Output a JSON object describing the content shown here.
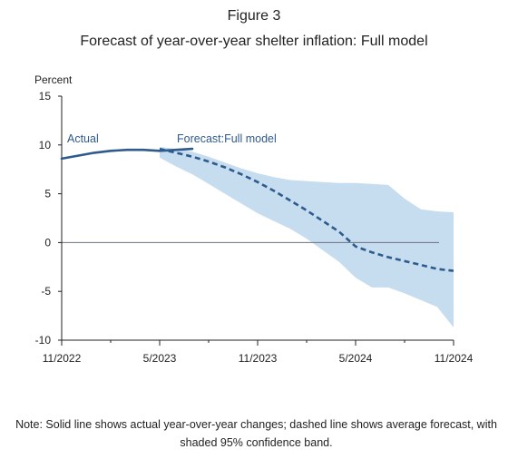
{
  "figure": {
    "label": "Figure 3",
    "title": "Forecast of year-over-year shelter inflation: Full model",
    "note": "Note: Solid line shows actual year-over-year changes; dashed line shows average forecast, with shaded 95% confidence band."
  },
  "colors": {
    "actual_line": "#2e5a8c",
    "forecast_line": "#2e5a8c",
    "band_fill": "#c6dcef",
    "zero_line": "#6b7280",
    "axis": "#222222"
  },
  "chart_data": {
    "type": "line",
    "ylabel": "Percent",
    "ylim": [
      -10,
      15
    ],
    "yticks": [
      15,
      10,
      5,
      0,
      -5,
      -10
    ],
    "xlim": [
      "2022-11",
      "2024-11"
    ],
    "xticks": [
      "11/2022",
      "5/2023",
      "11/2023",
      "5/2024",
      "11/2024"
    ],
    "x_tick_months": [
      "2022-11",
      "2023-05",
      "2023-11",
      "2024-05",
      "2024-11"
    ],
    "grid": false,
    "reference_line_y": 0,
    "series": [
      {
        "name": "Actual",
        "style": "solid",
        "points": [
          {
            "x": "2022-11",
            "y": 8.6
          },
          {
            "x": "2022-12",
            "y": 8.9
          },
          {
            "x": "2023-01",
            "y": 9.2
          },
          {
            "x": "2023-02",
            "y": 9.4
          },
          {
            "x": "2023-03",
            "y": 9.5
          },
          {
            "x": "2023-04",
            "y": 9.5
          },
          {
            "x": "2023-05",
            "y": 9.4
          },
          {
            "x": "2023-06",
            "y": 9.5
          },
          {
            "x": "2023-07",
            "y": 9.6
          }
        ]
      },
      {
        "name": "Forecast:Full model",
        "style": "dashed",
        "points": [
          {
            "x": "2023-05",
            "y": 9.6
          },
          {
            "x": "2023-06",
            "y": 9.2
          },
          {
            "x": "2023-07",
            "y": 8.8
          },
          {
            "x": "2023-08",
            "y": 8.3
          },
          {
            "x": "2023-09",
            "y": 7.7
          },
          {
            "x": "2023-10",
            "y": 7.0
          },
          {
            "x": "2023-11",
            "y": 6.2
          },
          {
            "x": "2023-12",
            "y": 5.3
          },
          {
            "x": "2024-01",
            "y": 4.3
          },
          {
            "x": "2024-02",
            "y": 3.3
          },
          {
            "x": "2024-03",
            "y": 2.2
          },
          {
            "x": "2024-04",
            "y": 1.1
          },
          {
            "x": "2024-05",
            "y": -0.4
          },
          {
            "x": "2024-06",
            "y": -1.0
          },
          {
            "x": "2024-07",
            "y": -1.5
          },
          {
            "x": "2024-08",
            "y": -1.9
          },
          {
            "x": "2024-09",
            "y": -2.3
          },
          {
            "x": "2024-10",
            "y": -2.7
          },
          {
            "x": "2024-11",
            "y": -2.9
          }
        ]
      }
    ],
    "confidence_band": {
      "level": "95%",
      "points": [
        {
          "x": "2023-05",
          "upper": 9.8,
          "lower": 8.7
        },
        {
          "x": "2023-06",
          "upper": 9.6,
          "lower": 7.8
        },
        {
          "x": "2023-07",
          "upper": 9.3,
          "lower": 7.0
        },
        {
          "x": "2023-08",
          "upper": 8.8,
          "lower": 6.0
        },
        {
          "x": "2023-09",
          "upper": 8.2,
          "lower": 5.0
        },
        {
          "x": "2023-10",
          "upper": 7.6,
          "lower": 4.0
        },
        {
          "x": "2023-11",
          "upper": 7.1,
          "lower": 3.0
        },
        {
          "x": "2023-12",
          "upper": 6.7,
          "lower": 2.2
        },
        {
          "x": "2024-01",
          "upper": 6.4,
          "lower": 1.4
        },
        {
          "x": "2024-02",
          "upper": 6.3,
          "lower": 0.4
        },
        {
          "x": "2024-03",
          "upper": 6.2,
          "lower": -0.8
        },
        {
          "x": "2024-04",
          "upper": 6.1,
          "lower": -2.0
        },
        {
          "x": "2024-05",
          "upper": 6.1,
          "lower": -3.6
        },
        {
          "x": "2024-06",
          "upper": 6.0,
          "lower": -4.6
        },
        {
          "x": "2024-07",
          "upper": 5.9,
          "lower": -4.6
        },
        {
          "x": "2024-08",
          "upper": 4.5,
          "lower": -5.2
        },
        {
          "x": "2024-09",
          "upper": 3.4,
          "lower": -5.9
        },
        {
          "x": "2024-10",
          "upper": 3.2,
          "lower": -6.6
        },
        {
          "x": "2024-11",
          "upper": 3.1,
          "lower": -8.7
        }
      ]
    }
  }
}
